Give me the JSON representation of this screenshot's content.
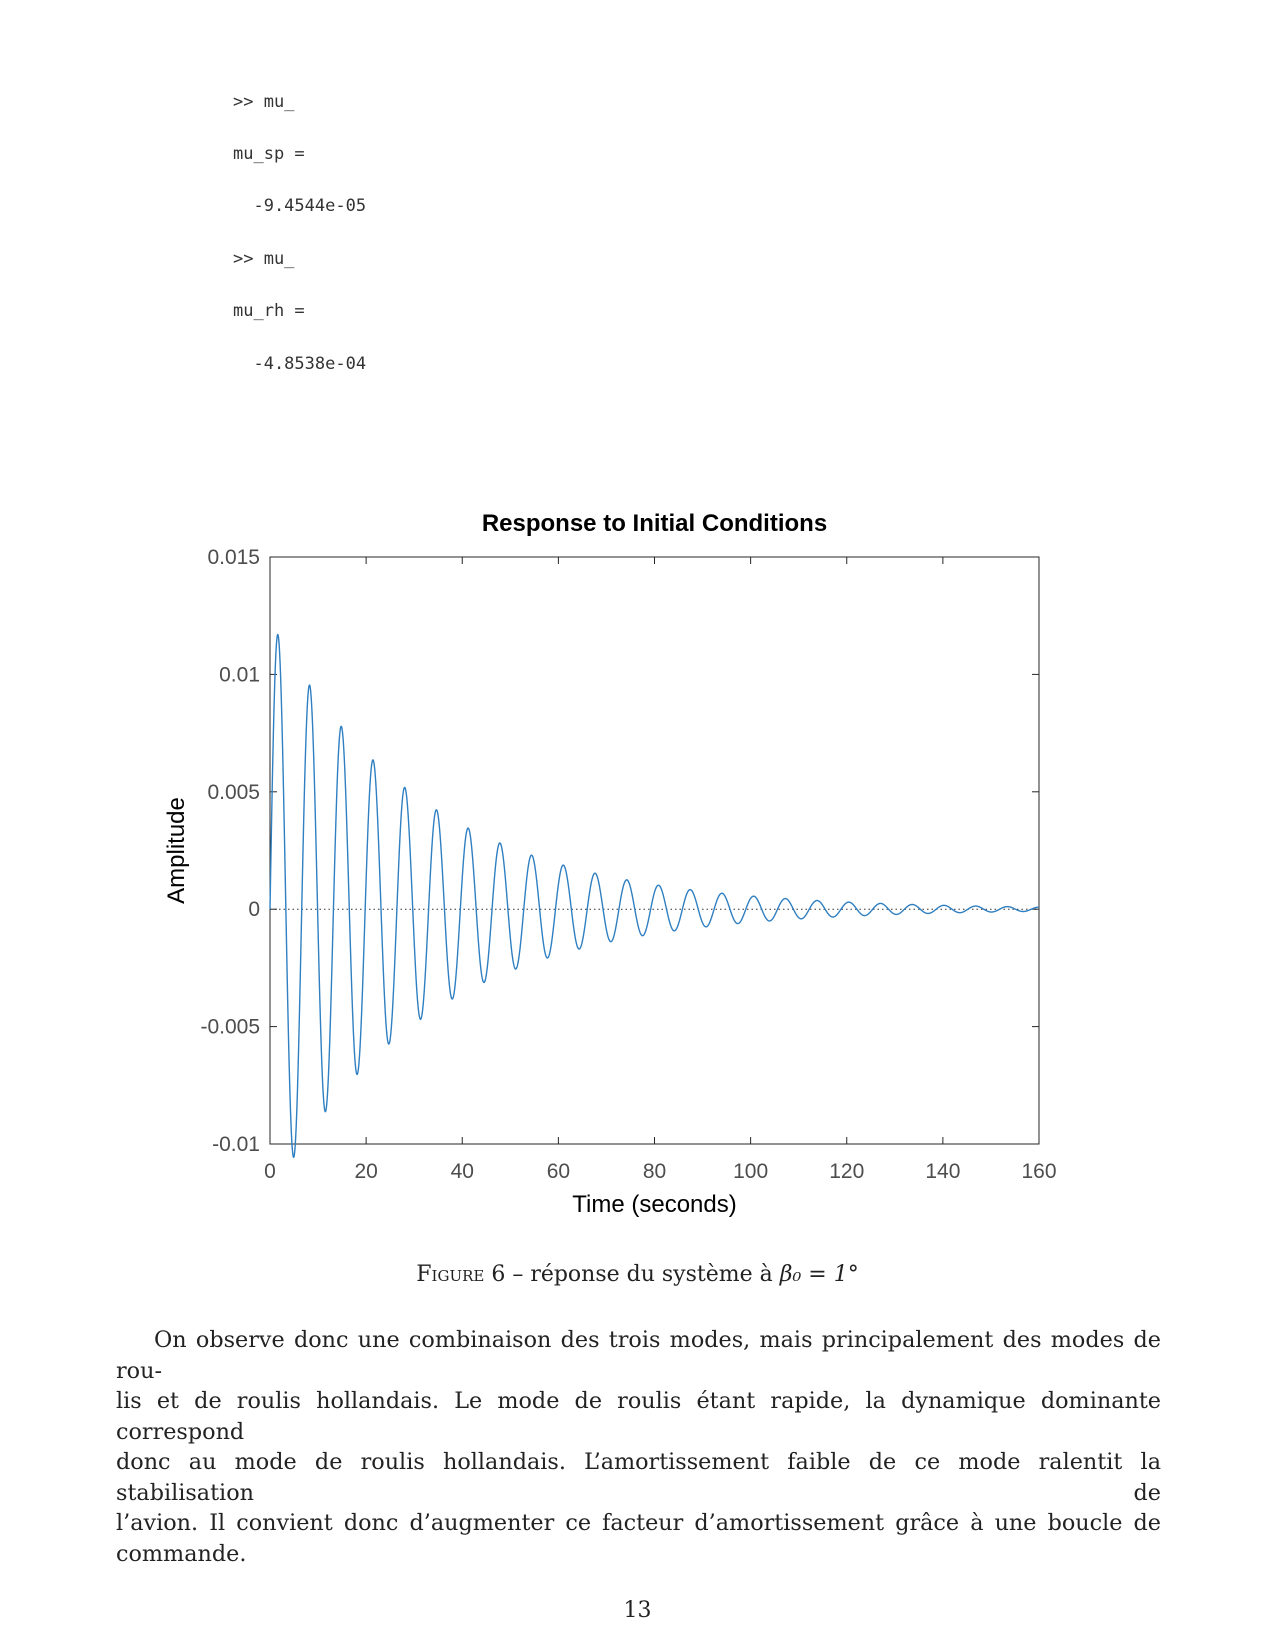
{
  "code": {
    "lines": [
      {
        "text": ">> mu_"
      },
      {
        "text": "mu_sp ="
      },
      {
        "text": "  -9.4544e-05"
      },
      {
        "text": ">> mu_"
      },
      {
        "text": "mu_rh ="
      },
      {
        "text": "  -4.8538e-04"
      }
    ]
  },
  "figure": {
    "caption_label": "Figure 6",
    "caption_text": " – réponse du système à ",
    "caption_math": "β₀ = 1°"
  },
  "chart_data": {
    "type": "line",
    "title": "Response to Initial Conditions",
    "xlabel": "Time (seconds)",
    "ylabel": "Amplitude",
    "xlim": [
      0,
      160
    ],
    "ylim": [
      -0.01,
      0.015
    ],
    "xticks": [
      "0",
      "20",
      "40",
      "60",
      "80",
      "100",
      "120",
      "140",
      "160"
    ],
    "yticks": [
      "-0.01",
      "-0.005",
      "0",
      "0.005",
      "0.01",
      "0.015"
    ],
    "grid": false,
    "zero_line": "dotted",
    "series": [
      {
        "color": "#2f7fc1",
        "model": {
          "amplitude": 0.0123,
          "decay_rate": 0.0308,
          "period": 6.6,
          "phase_peak_time": 1.85
        },
        "peaks": [
          [
            1.85,
            0.0109
          ],
          [
            8.4,
            0.0085
          ],
          [
            15.0,
            0.0068
          ],
          [
            21.6,
            0.0055
          ],
          [
            28.2,
            0.0043
          ],
          [
            34.8,
            0.0035
          ],
          [
            41.4,
            0.0028
          ],
          [
            48.0,
            0.0022
          ],
          [
            54.6,
            0.0017
          ],
          [
            61.2,
            0.0014
          ],
          [
            67.8,
            0.0011
          ]
        ],
        "troughs": [
          [
            5.1,
            -0.0097
          ],
          [
            11.7,
            -0.0078
          ],
          [
            18.3,
            -0.0063
          ],
          [
            24.9,
            -0.005
          ],
          [
            31.5,
            -0.004
          ],
          [
            38.1,
            -0.0032
          ],
          [
            44.7,
            -0.0025
          ],
          [
            51.3,
            -0.002
          ],
          [
            57.9,
            -0.0016
          ]
        ]
      }
    ]
  },
  "paragraph": {
    "lines": [
      "On observe donc une combinaison des trois modes, mais principalement des modes de rou-",
      "lis et de roulis hollandais. Le mode de roulis étant rapide, la dynamique dominante correspond",
      "donc au mode de roulis hollandais. L’amortissement faible de ce mode ralentit la stabilisation de",
      "l’avion. Il convient donc d’augmenter ce facteur d’amortissement grâce à une boucle de commande."
    ]
  },
  "page_number": "13"
}
